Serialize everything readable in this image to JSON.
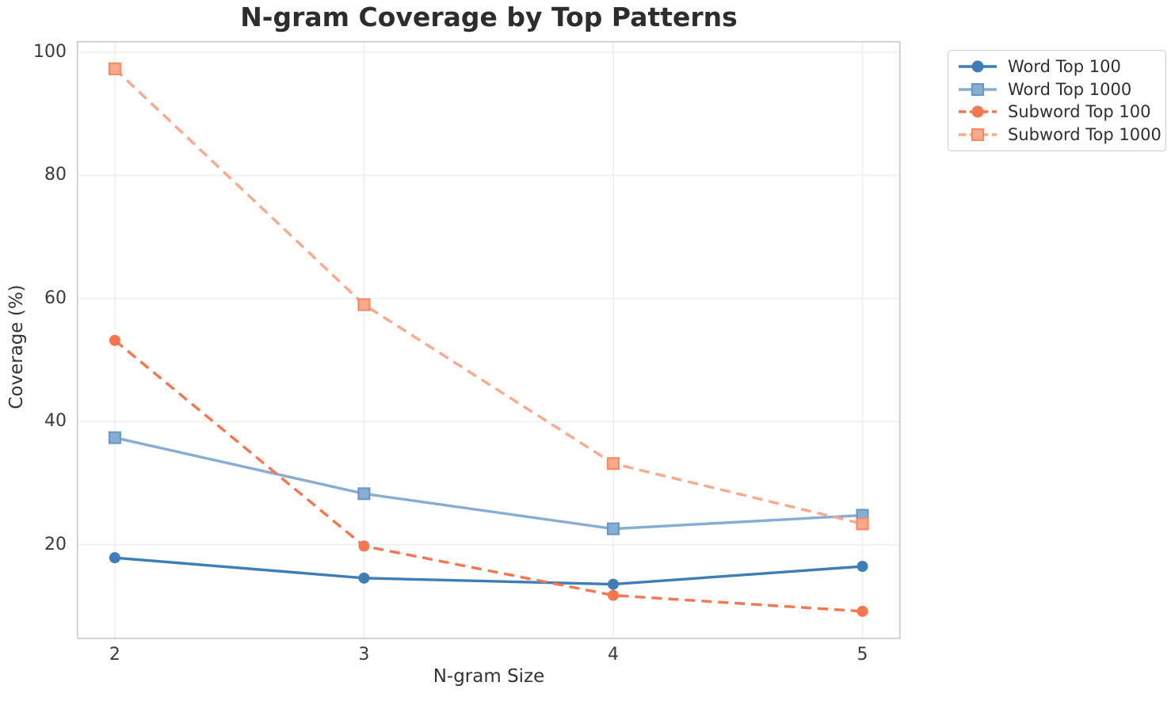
{
  "chart_data": {
    "type": "line",
    "title": "N-gram Coverage by Top Patterns",
    "xlabel": "N-gram Size",
    "ylabel": "Coverage (%)",
    "x": [
      2,
      3,
      4,
      5
    ],
    "xticks": [
      "2",
      "3",
      "4",
      "5"
    ],
    "yticks": [
      20,
      40,
      60,
      80,
      100
    ],
    "xlim": [
      1.85,
      5.15
    ],
    "ylim": [
      4.8,
      101.7
    ],
    "grid": true,
    "legend_position": "outside-top-right",
    "series": [
      {
        "name": "Word Top 100",
        "values": [
          17.9,
          14.6,
          13.6,
          16.5
        ],
        "color": "#3D7DB8",
        "edge_color": "#3D7DB8",
        "line_style": "solid",
        "marker": "circle"
      },
      {
        "name": "Word Top 1000",
        "values": [
          37.4,
          28.3,
          22.6,
          24.8
        ],
        "color": "#86ADD3",
        "edge_color": "#6497C4",
        "line_style": "solid",
        "marker": "square"
      },
      {
        "name": "Subword Top 100",
        "values": [
          53.2,
          19.8,
          11.8,
          9.2
        ],
        "color": "#F7764E",
        "edge_color": "#F7764E",
        "line_style": "dashed",
        "marker": "circle"
      },
      {
        "name": "Subword Top 1000",
        "values": [
          97.3,
          59.0,
          33.2,
          23.4
        ],
        "color": "#FBA98C",
        "edge_color": "#F8875F",
        "line_style": "dashed",
        "marker": "square"
      }
    ],
    "style": {
      "grid_color": "#EFEFEF",
      "spine_color": "#CDCDCD",
      "background": "#FFFFFF"
    }
  }
}
